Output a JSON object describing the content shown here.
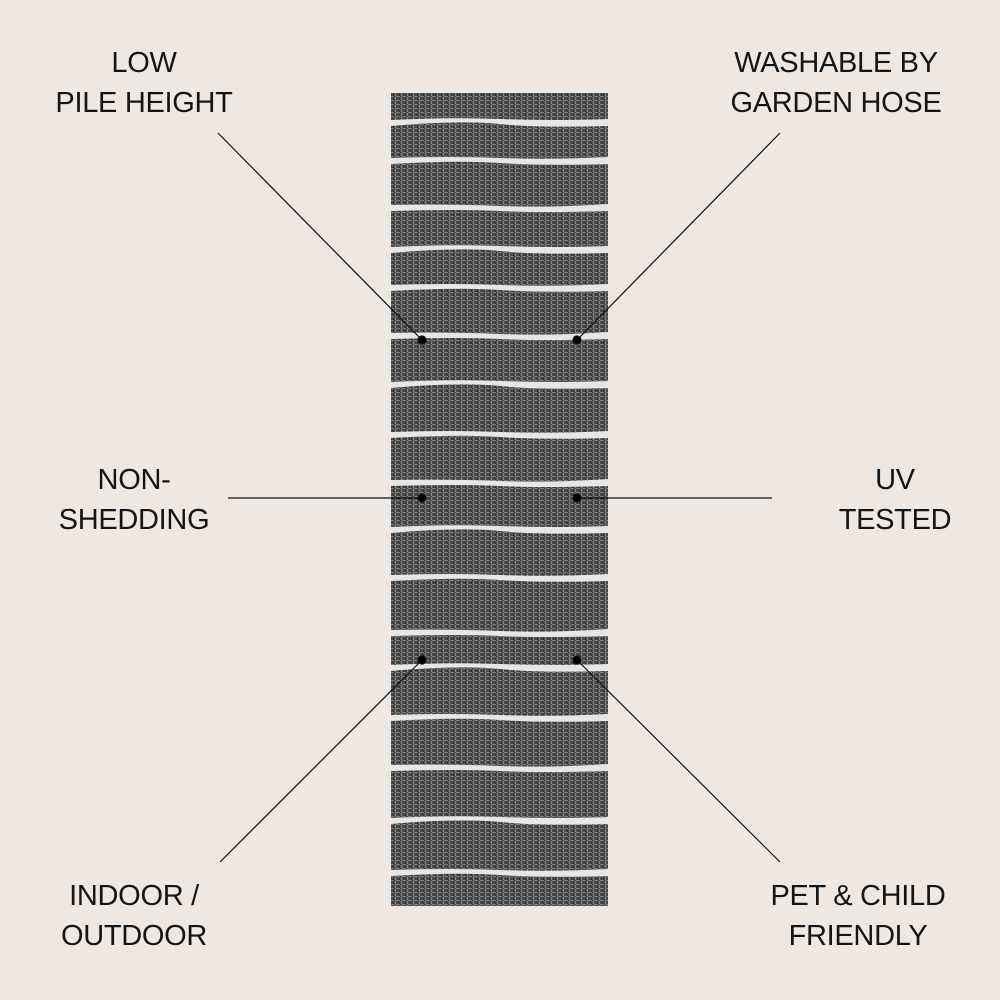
{
  "features": [
    {
      "id": "low-pile-height",
      "lines": [
        "LOW",
        "PILE HEIGHT"
      ]
    },
    {
      "id": "washable-by-garden-hose",
      "lines": [
        "WASHABLE BY",
        "GARDEN HOSE"
      ]
    },
    {
      "id": "non-shedding",
      "lines": [
        "NON-",
        "SHEDDING"
      ]
    },
    {
      "id": "uv-tested",
      "lines": [
        "UV",
        "TESTED"
      ]
    },
    {
      "id": "indoor-outdoor",
      "lines": [
        "INDOOR /",
        "OUTDOOR"
      ]
    },
    {
      "id": "pet-child-friendly",
      "lines": [
        "PET & CHILD",
        "FRIENDLY"
      ]
    }
  ],
  "colors": {
    "background": "#efe7e2",
    "rug": "#4a4a4a",
    "stripe": "#e8e6e3",
    "text": "#151515"
  }
}
